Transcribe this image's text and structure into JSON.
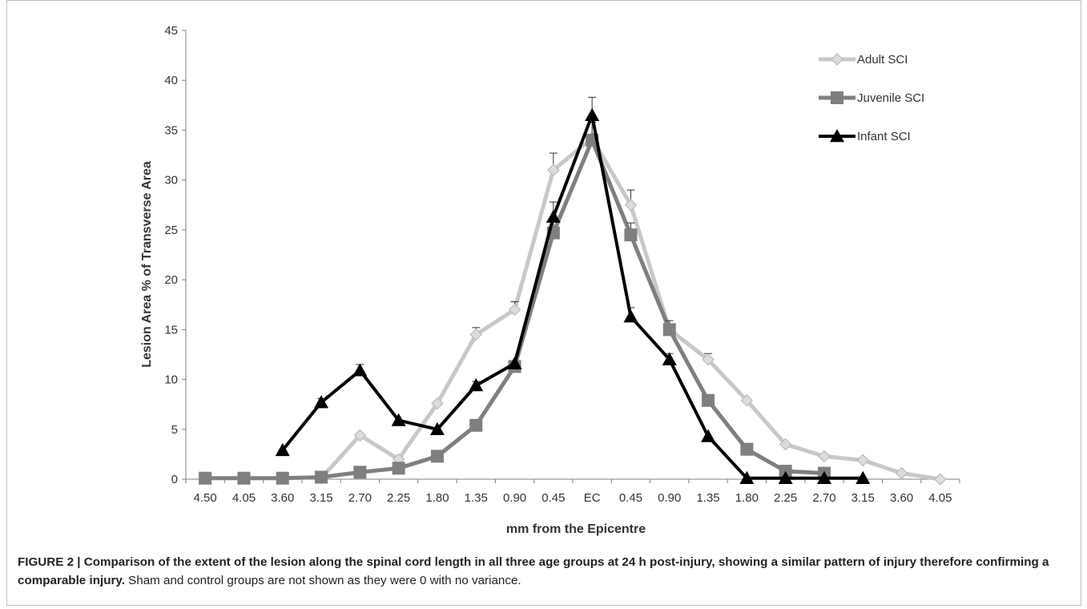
{
  "caption": {
    "bold_text": "FIGURE 2 | Comparison of the extent of the lesion along the spinal cord length in all three age groups at 24 h post-injury, showing a similar pattern of injury therefore confirming a comparable injury.",
    "normal_text": " Sham and control groups are not shown as they were 0 with no variance."
  },
  "chart_data": {
    "type": "line",
    "xlabel": "mm from the Epicentre",
    "ylabel": "Lesion Area % of Transverse Area",
    "ylim": [
      0,
      45
    ],
    "yticks": [
      "0",
      "5",
      "10",
      "15",
      "20",
      "25",
      "30",
      "35",
      "40",
      "45"
    ],
    "categories": [
      "4.50",
      "4.05",
      "3.60",
      "3.15",
      "2.70",
      "2.25",
      "1.80",
      "1.35",
      "0.90",
      "0.45",
      "EC",
      "0.45",
      "0.90",
      "1.35",
      "1.80",
      "2.25",
      "2.70",
      "3.15",
      "3.60",
      "4.05"
    ],
    "legend_position": "top-right",
    "grid": false,
    "series": [
      {
        "name": "Adult SCI",
        "color": "#c8c8c8",
        "marker": "diamond",
        "values": [
          null,
          null,
          null,
          0.1,
          4.4,
          2.0,
          7.6,
          14.5,
          17.0,
          31.0,
          34.2,
          27.5,
          15.0,
          12.0,
          7.9,
          3.5,
          2.3,
          1.9,
          0.6,
          0.0
        ],
        "errors": [
          null,
          null,
          null,
          null,
          null,
          null,
          null,
          0.7,
          0.8,
          1.7,
          null,
          1.5,
          null,
          0.6,
          null,
          null,
          null,
          null,
          null,
          null
        ]
      },
      {
        "name": "Juvenile SCI",
        "color": "#7f7f7f",
        "marker": "square",
        "values": [
          0.1,
          0.1,
          0.1,
          0.2,
          0.7,
          1.1,
          2.3,
          5.4,
          11.3,
          24.7,
          34.0,
          24.5,
          15.0,
          7.9,
          3.0,
          0.8,
          0.6,
          null,
          null,
          null
        ],
        "errors": [
          null,
          null,
          null,
          null,
          null,
          null,
          null,
          null,
          null,
          1.2,
          1.8,
          1.2,
          0.9,
          null,
          null,
          null,
          null,
          null,
          null,
          null
        ]
      },
      {
        "name": "Infant SCI",
        "color": "#000000",
        "marker": "triangle",
        "values": [
          null,
          null,
          2.9,
          7.7,
          10.9,
          5.9,
          5.0,
          9.4,
          11.6,
          26.3,
          36.5,
          16.3,
          12.0,
          4.3,
          0.1,
          0.1,
          0.1,
          0.1,
          null,
          null
        ],
        "errors": [
          null,
          null,
          null,
          0.4,
          0.6,
          null,
          null,
          0.4,
          null,
          1.5,
          1.8,
          0.9,
          0.6,
          null,
          null,
          null,
          null,
          null,
          null,
          null
        ]
      }
    ]
  }
}
